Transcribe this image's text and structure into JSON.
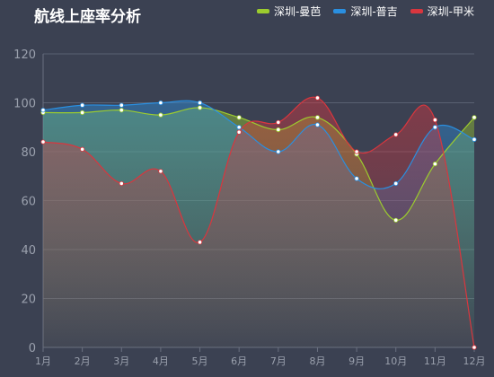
{
  "chart_data": {
    "type": "area",
    "title": "航线上座率分析",
    "categories": [
      "1月",
      "2月",
      "3月",
      "4月",
      "5月",
      "6月",
      "7月",
      "8月",
      "9月",
      "10月",
      "11月",
      "12月"
    ],
    "ylim": [
      0,
      120
    ],
    "yticks": [
      0,
      20,
      40,
      60,
      80,
      100,
      120
    ],
    "grid": true,
    "smooth": true,
    "legend_position": "top-right",
    "series": [
      {
        "name": "深圳-曼芭",
        "color": "#9ccc2e",
        "values": [
          96,
          96,
          97,
          95,
          98,
          94,
          89,
          94,
          79,
          52,
          75,
          94
        ]
      },
      {
        "name": "深圳-普吉",
        "color": "#2a8fe0",
        "values": [
          97,
          99,
          99,
          100,
          100,
          90,
          80,
          91,
          69,
          67,
          90,
          85
        ]
      },
      {
        "name": "深圳-甲米",
        "color": "#d9363e",
        "values": [
          84,
          81,
          67,
          72,
          43,
          88,
          92,
          102,
          80,
          87,
          93,
          0
        ]
      }
    ]
  }
}
